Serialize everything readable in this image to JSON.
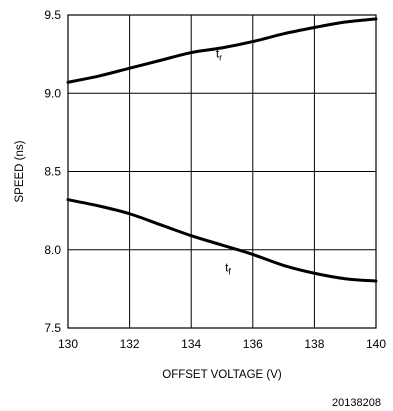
{
  "chart_data": {
    "type": "line",
    "xlabel": "OFFSET VOLTAGE (V)",
    "ylabel": "SPEED (ns)",
    "xlim": [
      130,
      140
    ],
    "ylim": [
      7.5,
      9.5
    ],
    "x_ticks": [
      130,
      132,
      134,
      136,
      138,
      140
    ],
    "y_ticks": [
      7.5,
      8.0,
      8.5,
      9.0,
      9.5
    ],
    "x_tick_labels": [
      "130",
      "132",
      "134",
      "136",
      "138",
      "140"
    ],
    "y_tick_labels": [
      "7.5",
      "8.0",
      "8.5",
      "9.0",
      "9.5"
    ],
    "grid": true,
    "series": [
      {
        "label_main": "t",
        "label_sub": "r",
        "label_at": {
          "x": 134.8,
          "y": 9.23
        },
        "x": [
          130,
          131,
          132,
          133,
          134,
          135,
          136,
          137,
          138,
          139,
          140
        ],
        "y": [
          9.07,
          9.11,
          9.16,
          9.21,
          9.26,
          9.29,
          9.33,
          9.38,
          9.42,
          9.455,
          9.475
        ]
      },
      {
        "label_main": "t",
        "label_sub": "f",
        "label_at": {
          "x": 135.1,
          "y": 7.86
        },
        "x": [
          130,
          131,
          132,
          133,
          134,
          135,
          136,
          137,
          138,
          139,
          140
        ],
        "y": [
          8.32,
          8.28,
          8.23,
          8.16,
          8.09,
          8.03,
          7.97,
          7.9,
          7.85,
          7.815,
          7.8
        ]
      }
    ],
    "footnote": "20138208",
    "line_color": "#000000",
    "grid_color": "#000000"
  }
}
